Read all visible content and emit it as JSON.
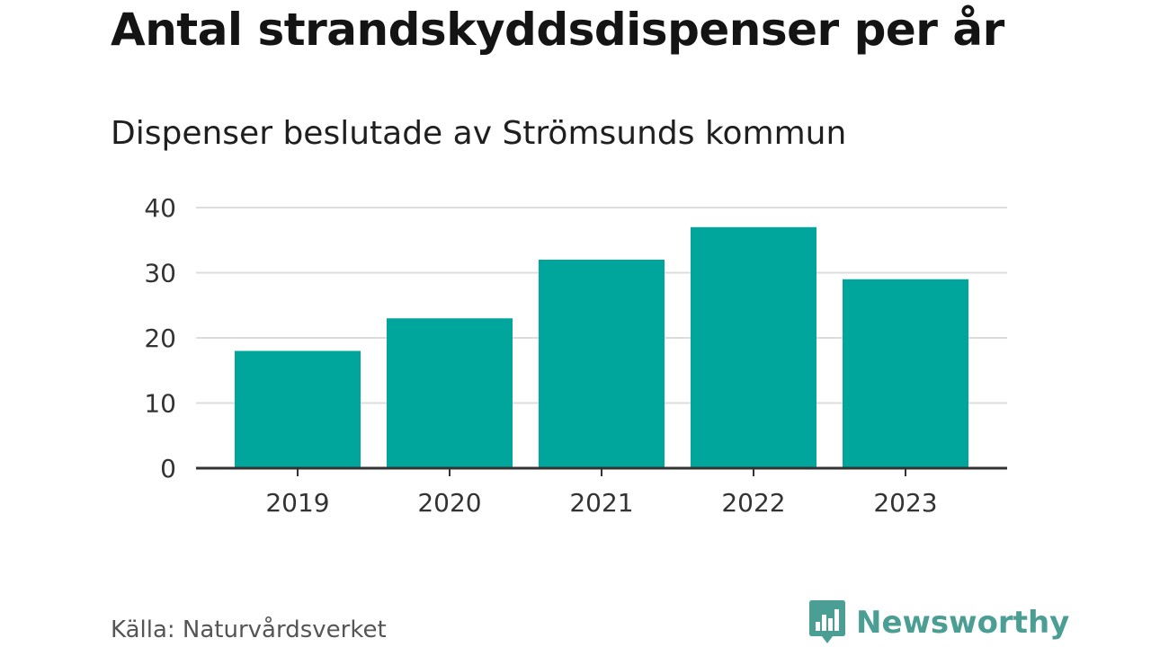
{
  "header": {
    "title": "Antal strandskyddsdispenser per år",
    "subtitle": "Dispenser beslutade av Strömsunds kommun"
  },
  "footer": {
    "source": "Källa: Naturvårdsverket",
    "brand": "Newsworthy",
    "brand_icon": "bar-chart-speech-icon"
  },
  "colors": {
    "bar": "#00a69b",
    "grid": "#dddddd",
    "axis": "#333333",
    "brand": "#4a9e93"
  },
  "chart_data": {
    "type": "bar",
    "title": "Antal strandskyddsdispenser per år",
    "subtitle": "Dispenser beslutade av Strömsunds kommun",
    "categories": [
      "2019",
      "2020",
      "2021",
      "2022",
      "2023"
    ],
    "values": [
      18,
      23,
      32,
      37,
      29
    ],
    "yticks": [
      0,
      10,
      20,
      30,
      40
    ],
    "ylim": [
      0,
      40
    ],
    "xlabel": "",
    "ylabel": "",
    "grid": true
  }
}
